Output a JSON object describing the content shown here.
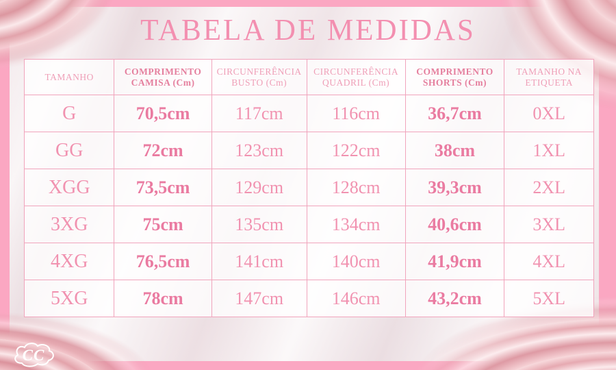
{
  "title": "TABELA DE MEDIDAS",
  "logo": {
    "text": "CC"
  },
  "colors": {
    "frame_pink": "#fba7c2",
    "satin_base": "#efe3e6",
    "title_pink": "#f38fb0",
    "table_border_pink": "#f1a4bc",
    "text_pink": "#f192b0",
    "bold_text_pink": "#ea7ba1",
    "bold_header_bg": "#f9e7ed",
    "satin_fold_rose": "#dc97a0"
  },
  "chart_data": {
    "type": "table",
    "title": "TABELA DE MEDIDAS",
    "columns": [
      {
        "label": "TAMANHO",
        "bold": false
      },
      {
        "label": "COMPRIMENTO CAMISA (Cm)",
        "bold": true
      },
      {
        "label": "CIRCUNFERÊNCIA BUSTO (Cm)",
        "bold": false
      },
      {
        "label": "CIRCUNFERÊNCIA QUADRIL (Cm)",
        "bold": false
      },
      {
        "label": "COMPRIMENTO SHORTS (Cm)",
        "bold": true
      },
      {
        "label": "TAMANHO NA ETIQUETA",
        "bold": false
      }
    ],
    "rows": [
      [
        "G",
        "70,5cm",
        "117cm",
        "116cm",
        "36,7cm",
        "0XL"
      ],
      [
        "GG",
        "72cm",
        "123cm",
        "122cm",
        "38cm",
        "1XL"
      ],
      [
        "XGG",
        "73,5cm",
        "129cm",
        "128cm",
        "39,3cm",
        "2XL"
      ],
      [
        "3XG",
        "75cm",
        "135cm",
        "134cm",
        "40,6cm",
        "3XL"
      ],
      [
        "4XG",
        "76,5cm",
        "141cm",
        "140cm",
        "41,9cm",
        "4XL"
      ],
      [
        "5XG",
        "78cm",
        "147cm",
        "146cm",
        "43,2cm",
        "5XL"
      ]
    ]
  }
}
